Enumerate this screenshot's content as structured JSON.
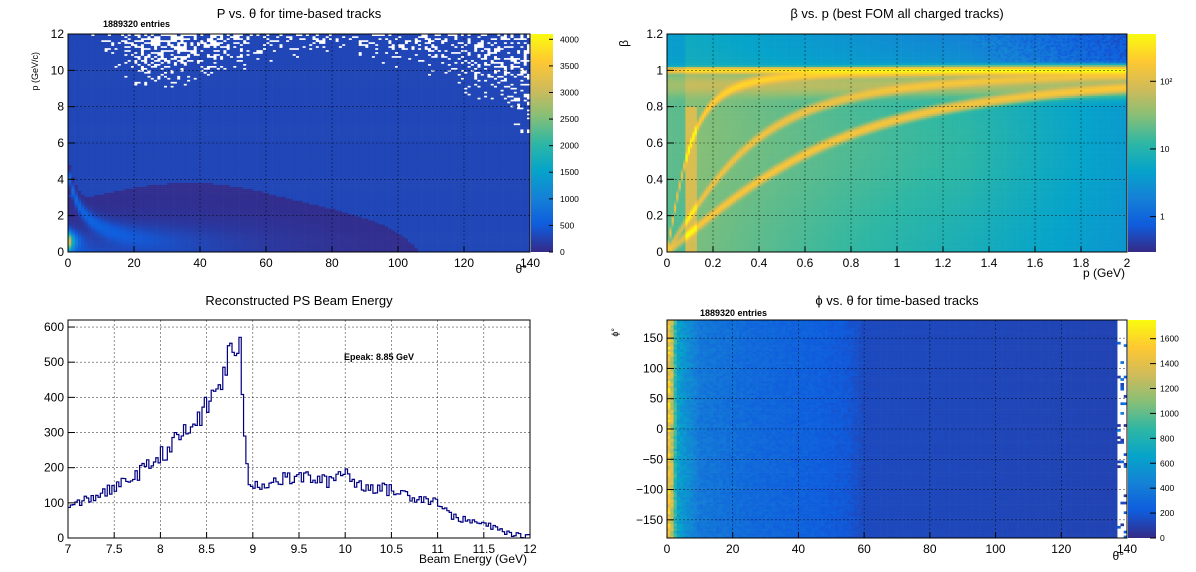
{
  "colors": {
    "palette": [
      "#352a87",
      "#0f5cdd",
      "#1481d6",
      "#06a4ca",
      "#2eb7a4",
      "#87bf77",
      "#d1bb59",
      "#fec832",
      "#f9fb0e"
    ],
    "hist_line": "#000080",
    "grid": "#000000"
  },
  "chart_data": [
    {
      "id": "p_vs_theta",
      "type": "heatmap",
      "title": "P vs. θ for time-based tracks",
      "entries": "1889320 entries",
      "xlabel": "θ°",
      "ylabel": "p (GeV/c)",
      "xlim": [
        0,
        140
      ],
      "ylim": [
        0,
        12
      ],
      "xticks": [
        "0",
        "20",
        "40",
        "60",
        "80",
        "100",
        "120",
        "140"
      ],
      "yticks": [
        "0",
        "2",
        "4",
        "6",
        "8",
        "10",
        "12"
      ],
      "zlim": [
        0,
        4100
      ],
      "zscale": "linear",
      "zticks": [
        "0",
        "500",
        "1000",
        "1500",
        "2000",
        "2500",
        "3000",
        "3500",
        "4000"
      ],
      "grid": true,
      "description_values": [
        {
          "theta": 2,
          "p": 0.6,
          "z": 4000
        },
        {
          "theta": 5,
          "p": 2.5,
          "z": 600
        },
        {
          "theta": 10,
          "p": 1.5,
          "z": 700
        },
        {
          "theta": 20,
          "p": 0.8,
          "z": 600
        },
        {
          "theta": 40,
          "p": 0.5,
          "z": 450
        },
        {
          "theta": 80,
          "p": 0.3,
          "z": 250
        },
        {
          "theta": 120,
          "p": 0.2,
          "z": 120
        },
        {
          "theta": 10,
          "p": 8,
          "z": 40
        },
        {
          "theta": 60,
          "p": 6,
          "z": 3
        }
      ]
    },
    {
      "id": "beta_vs_p",
      "type": "heatmap",
      "title": "β vs. p (best FOM all charged tracks)",
      "xlabel": "p (GeV)",
      "ylabel": "β",
      "xlim": [
        0,
        2
      ],
      "ylim": [
        0,
        1.2
      ],
      "xticks": [
        "0",
        "0.2",
        "0.4",
        "0.6",
        "0.8",
        "1",
        "1.2",
        "1.4",
        "1.6",
        "1.8",
        "2"
      ],
      "yticks": [
        "0",
        "0.2",
        "0.4",
        "0.6",
        "0.8",
        "1",
        "1.2"
      ],
      "zscale": "log",
      "zlim": [
        0.3,
        500
      ],
      "zticks": [
        {
          "value": 1,
          "label": "1"
        },
        {
          "value": 10,
          "label": "10"
        },
        {
          "value": 100,
          "label": "10²"
        }
      ],
      "grid": true,
      "bands": [
        {
          "name": "beta1",
          "beta": 1.0,
          "z": 300
        },
        {
          "name": "pion",
          "mass": 0.1396,
          "z": 200
        },
        {
          "name": "kaon",
          "mass": 0.4937,
          "z": 120
        },
        {
          "name": "proton",
          "mass": 0.9383,
          "z": 150
        }
      ]
    },
    {
      "id": "beam_energy",
      "type": "line",
      "title": "Reconstructed PS Beam Energy",
      "xlabel": "Beam Energy (GeV)",
      "ylabel": "",
      "annotation": "Epeak: 8.85 GeV",
      "xlim": [
        7,
        12
      ],
      "ylim": [
        0,
        620
      ],
      "xticks": [
        "7",
        "7.5",
        "8",
        "8.5",
        "9",
        "9.5",
        "10",
        "10.5",
        "11",
        "11.5",
        "12"
      ],
      "yticks": [
        "0",
        "100",
        "200",
        "300",
        "400",
        "500",
        "600"
      ],
      "grid": true,
      "x": [
        7.0,
        7.1,
        7.2,
        7.3,
        7.4,
        7.5,
        7.6,
        7.7,
        7.8,
        7.9,
        8.0,
        8.1,
        8.2,
        8.3,
        8.4,
        8.5,
        8.6,
        8.65,
        8.7,
        8.75,
        8.8,
        8.85,
        8.88,
        8.9,
        8.95,
        9.0,
        9.1,
        9.2,
        9.3,
        9.4,
        9.5,
        9.6,
        9.7,
        9.8,
        9.9,
        9.95,
        10.0,
        10.05,
        10.1,
        10.2,
        10.3,
        10.4,
        10.5,
        10.6,
        10.7,
        10.8,
        10.9,
        11.0,
        11.05,
        11.1,
        11.2,
        11.3,
        11.4,
        11.5,
        11.6,
        11.7,
        11.8,
        11.9,
        12.0
      ],
      "y": [
        85,
        95,
        110,
        120,
        130,
        140,
        155,
        175,
        190,
        210,
        235,
        255,
        285,
        305,
        335,
        370,
        420,
        440,
        480,
        520,
        545,
        560,
        480,
        300,
        170,
        150,
        155,
        160,
        165,
        170,
        170,
        175,
        165,
        160,
        175,
        185,
        200,
        175,
        155,
        150,
        145,
        140,
        135,
        130,
        120,
        115,
        110,
        105,
        95,
        70,
        60,
        50,
        45,
        40,
        30,
        20,
        12,
        6,
        3
      ]
    },
    {
      "id": "phi_vs_theta",
      "type": "heatmap",
      "title": "ϕ vs. θ for time-based tracks",
      "entries": "1889320 entries",
      "xlabel": "θ°",
      "ylabel": "ϕ°",
      "xlim": [
        0,
        140
      ],
      "ylim": [
        -180,
        180
      ],
      "xticks": [
        "0",
        "20",
        "40",
        "60",
        "80",
        "100",
        "120",
        "140"
      ],
      "yticks": [
        "−150",
        "−100",
        "−50",
        "0",
        "50",
        "100",
        "150"
      ],
      "zlim": [
        0,
        1750
      ],
      "zscale": "linear",
      "zticks": [
        "0",
        "200",
        "400",
        "600",
        "800",
        "1000",
        "1200",
        "1400",
        "1600"
      ],
      "grid": true,
      "profile_theta_z": [
        {
          "theta": 1,
          "z": 1500
        },
        {
          "theta": 3,
          "z": 650
        },
        {
          "theta": 10,
          "z": 380
        },
        {
          "theta": 25,
          "z": 300
        },
        {
          "theta": 45,
          "z": 240
        },
        {
          "theta": 55,
          "z": 200
        },
        {
          "theta": 60,
          "z": 140
        },
        {
          "theta": 140,
          "z": 110
        }
      ]
    }
  ]
}
